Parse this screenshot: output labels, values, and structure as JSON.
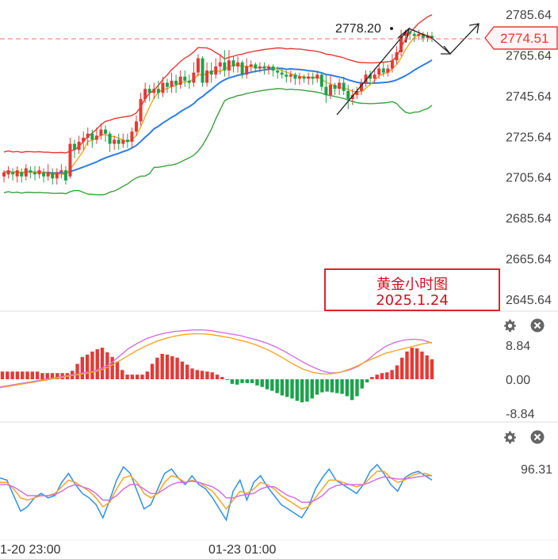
{
  "chart_data": [
    {
      "type": "candlestick",
      "title": "",
      "y_axis_ticks": [
        "2785.64",
        "2765.64",
        "2745.64",
        "2725.64",
        "2705.64",
        "2685.64",
        "2665.64",
        "2645.64"
      ],
      "ylim": [
        2640,
        2789
      ],
      "current_price": "2774.51",
      "high_label": "2778.20",
      "overlays": [
        "Bollinger upper (red)",
        "Bollinger middle (blue)",
        "Bollinger lower (green)",
        "moving average (orange)"
      ],
      "candles": [
        [
          2706,
          2708,
          2703,
          2709
        ],
        [
          2707,
          2709,
          2705,
          2711
        ],
        [
          2708,
          2707,
          2704,
          2710
        ],
        [
          2706,
          2709,
          2703,
          2711
        ],
        [
          2708,
          2706,
          2703,
          2710
        ],
        [
          2706,
          2710,
          2704,
          2712
        ],
        [
          2709,
          2708,
          2705,
          2711
        ],
        [
          2708,
          2707,
          2704,
          2711
        ],
        [
          2707,
          2709,
          2705,
          2711
        ],
        [
          2708,
          2706,
          2703,
          2710
        ],
        [
          2706,
          2708,
          2704,
          2712
        ],
        [
          2708,
          2705,
          2702,
          2710
        ],
        [
          2705,
          2708,
          2702,
          2710
        ],
        [
          2708,
          2709,
          2705,
          2712
        ],
        [
          2709,
          2704,
          2702,
          2711
        ],
        [
          2706,
          2722,
          2705,
          2725
        ],
        [
          2722,
          2719,
          2715,
          2724
        ],
        [
          2719,
          2723,
          2717,
          2726
        ],
        [
          2723,
          2725,
          2719,
          2728
        ],
        [
          2725,
          2727,
          2721,
          2730
        ],
        [
          2727,
          2724,
          2720,
          2729
        ],
        [
          2724,
          2726,
          2722,
          2730
        ],
        [
          2726,
          2729,
          2724,
          2732
        ],
        [
          2729,
          2727,
          2723,
          2731
        ],
        [
          2727,
          2722,
          2718,
          2728
        ],
        [
          2722,
          2724,
          2719,
          2726
        ],
        [
          2724,
          2722,
          2719,
          2727
        ],
        [
          2722,
          2724,
          2720,
          2727
        ],
        [
          2724,
          2723,
          2720,
          2727
        ],
        [
          2723,
          2728,
          2720,
          2730
        ],
        [
          2728,
          2733,
          2726,
          2736
        ],
        [
          2733,
          2744,
          2731,
          2747
        ],
        [
          2744,
          2749,
          2742,
          2752
        ],
        [
          2749,
          2747,
          2743,
          2751
        ],
        [
          2747,
          2749,
          2744,
          2752
        ],
        [
          2749,
          2747,
          2744,
          2753
        ],
        [
          2747,
          2752,
          2745,
          2755
        ],
        [
          2752,
          2750,
          2747,
          2754
        ],
        [
          2750,
          2753,
          2747,
          2757
        ],
        [
          2753,
          2751,
          2747,
          2756
        ],
        [
          2751,
          2755,
          2749,
          2758
        ],
        [
          2755,
          2753,
          2750,
          2758
        ],
        [
          2753,
          2752,
          2749,
          2756
        ],
        [
          2752,
          2757,
          2750,
          2762
        ],
        [
          2757,
          2764,
          2755,
          2766
        ],
        [
          2764,
          2752,
          2750,
          2765
        ],
        [
          2752,
          2758,
          2750,
          2762
        ],
        [
          2758,
          2756,
          2752,
          2762
        ],
        [
          2756,
          2760,
          2754,
          2764
        ],
        [
          2760,
          2762,
          2756,
          2766
        ],
        [
          2762,
          2758,
          2755,
          2768
        ],
        [
          2758,
          2763,
          2755,
          2768
        ],
        [
          2763,
          2760,
          2757,
          2765
        ],
        [
          2760,
          2762,
          2757,
          2765
        ],
        [
          2762,
          2756,
          2754,
          2763
        ],
        [
          2756,
          2760,
          2754,
          2764
        ],
        [
          2760,
          2761,
          2757,
          2763
        ],
        [
          2761,
          2759,
          2757,
          2762
        ],
        [
          2759,
          2760,
          2757,
          2762
        ],
        [
          2760,
          2759,
          2756,
          2762
        ],
        [
          2759,
          2760,
          2756,
          2761
        ],
        [
          2760,
          2758,
          2755,
          2761
        ],
        [
          2758,
          2757,
          2754,
          2760
        ],
        [
          2757,
          2756,
          2754,
          2759
        ],
        [
          2756,
          2755,
          2752,
          2758
        ],
        [
          2755,
          2756,
          2752,
          2758
        ],
        [
          2756,
          2754,
          2751,
          2757
        ],
        [
          2754,
          2755,
          2751,
          2757
        ],
        [
          2755,
          2754,
          2752,
          2756
        ],
        [
          2754,
          2755,
          2751,
          2757
        ],
        [
          2755,
          2754,
          2751,
          2757
        ],
        [
          2754,
          2756,
          2752,
          2758
        ],
        [
          2756,
          2750,
          2748,
          2757
        ],
        [
          2750,
          2746,
          2742,
          2756
        ],
        [
          2746,
          2751,
          2744,
          2756
        ],
        [
          2751,
          2749,
          2746,
          2752
        ],
        [
          2749,
          2752,
          2746,
          2754
        ],
        [
          2752,
          2748,
          2746,
          2755
        ],
        [
          2748,
          2744,
          2739,
          2751
        ],
        [
          2744,
          2746,
          2741,
          2749
        ],
        [
          2746,
          2748,
          2744,
          2750
        ],
        [
          2748,
          2752,
          2746,
          2754
        ],
        [
          2752,
          2756,
          2750,
          2758
        ],
        [
          2756,
          2754,
          2751,
          2758
        ],
        [
          2754,
          2756,
          2752,
          2759
        ],
        [
          2756,
          2759,
          2754,
          2761
        ],
        [
          2759,
          2757,
          2755,
          2762
        ],
        [
          2757,
          2759,
          2755,
          2761
        ],
        [
          2759,
          2763,
          2757,
          2766
        ],
        [
          2763,
          2767,
          2761,
          2770
        ],
        [
          2767,
          2775,
          2765,
          2778
        ],
        [
          2775,
          2777,
          2772,
          2778
        ],
        [
          2777,
          2776,
          2773,
          2778
        ],
        [
          2776,
          2775,
          2772,
          2778
        ],
        [
          2775,
          2776,
          2773,
          2778
        ],
        [
          2776,
          2774,
          2772,
          2777
        ],
        [
          2774,
          2775,
          2772,
          2777
        ],
        [
          2775,
          2774,
          2772,
          2777
        ]
      ]
    },
    {
      "type": "macd",
      "y_axis_ticks": [
        "8.84",
        "0.00",
        "-8.84"
      ],
      "ylim": [
        -12,
        12
      ],
      "series": [
        {
          "name": "",
          "color": "#d070e0"
        },
        {
          "name": "",
          "color": "#f5a623"
        }
      ],
      "histogram": [
        2.0,
        2.0,
        2.0,
        2.0,
        2.0,
        2.0,
        2.0,
        2.0,
        1.6,
        1.6,
        1.6,
        1.6,
        1.6,
        1.6,
        2.2,
        4.0,
        5.8,
        6.4,
        7.2,
        7.8,
        8.2,
        7.0,
        5.8,
        4.6,
        2.4,
        1.2,
        1.2,
        1.2,
        1.2,
        2.0,
        4.0,
        5.6,
        6.6,
        6.4,
        6.0,
        5.6,
        4.6,
        3.8,
        2.8,
        2.4,
        2.2,
        2.0,
        1.8,
        1.2,
        0.6,
        0,
        -1.2,
        -1.4,
        -1.0,
        -1.0,
        -1.0,
        -1.6,
        -2.0,
        -2.6,
        -3.0,
        -3.6,
        -4.2,
        -4.6,
        -5.0,
        -5.6,
        -6.0,
        -5.8,
        -5.0,
        -4.0,
        -3.4,
        -3.2,
        -3.4,
        -3.6,
        -3.8,
        -4.4,
        -5.4,
        -4.4,
        -2.4,
        -0.8,
        0.6,
        1.2,
        1.6,
        1.8,
        2.4,
        3.6,
        5.6,
        7.2,
        8.2,
        8.0,
        7.2,
        6.2,
        5.2
      ],
      "line_a": [
        -2,
        -1.6,
        -1.2,
        -0.8,
        -0.4,
        0,
        0.4,
        0.8,
        1.2,
        1.6,
        2.0,
        2.8,
        4.0,
        6.0,
        8.0,
        9.4,
        10.6,
        11.4,
        12.0,
        12.4,
        12.6,
        12.8,
        12.8,
        12.6,
        12.2,
        11.8,
        11.4,
        10.8,
        10.2,
        9.4,
        8.4,
        7.2,
        5.8,
        4.4,
        3.2,
        2.2,
        1.6,
        1.8,
        2.4,
        3.4,
        5.0,
        7.0,
        8.6,
        9.6,
        10.2,
        10.4,
        10.2,
        9.4
      ],
      "line_b": [
        -2.2,
        -1.8,
        -1.4,
        -1.0,
        -0.6,
        -0.2,
        0.2,
        0.6,
        1.0,
        1.4,
        1.8,
        2.4,
        3.4,
        4.8,
        6.2,
        7.6,
        8.8,
        9.8,
        10.6,
        11.2,
        11.6,
        11.8,
        11.8,
        11.6,
        11.2,
        10.8,
        10.2,
        9.6,
        8.8,
        7.8,
        6.6,
        5.2,
        3.8,
        2.6,
        1.8,
        1.4,
        1.4,
        1.8,
        2.6,
        3.6,
        4.8,
        5.8,
        6.8,
        7.4,
        8.0,
        8.6,
        9.2,
        9.6
      ],
      "current_value": "0.00"
    },
    {
      "type": "oscillator",
      "y_axis_ticks": [
        "96.31"
      ],
      "ylim": [
        40,
        110
      ],
      "series": [
        {
          "name": "",
          "color": "#2f8fe6"
        },
        {
          "name": "",
          "color": "#f5a623"
        },
        {
          "name": "",
          "color": "#d070e0"
        }
      ],
      "line_fast": [
        88,
        86,
        72,
        58,
        62,
        70,
        74,
        70,
        72,
        84,
        92,
        82,
        74,
        70,
        64,
        52,
        68,
        86,
        98,
        92,
        76,
        60,
        64,
        78,
        92,
        96,
        88,
        82,
        90,
        82,
        78,
        70,
        60,
        50,
        76,
        86,
        68,
        84,
        90,
        80,
        72,
        64,
        60,
        56,
        52,
        62,
        78,
        88,
        96,
        86,
        82,
        78,
        74,
        82,
        94,
        100,
        92,
        82,
        76,
        88,
        92,
        94,
        90,
        86
      ],
      "line_mid": [
        84,
        84,
        78,
        70,
        68,
        70,
        72,
        72,
        74,
        80,
        86,
        84,
        80,
        76,
        70,
        62,
        66,
        78,
        88,
        90,
        84,
        74,
        70,
        74,
        84,
        90,
        88,
        84,
        86,
        84,
        80,
        76,
        68,
        60,
        68,
        76,
        74,
        78,
        84,
        82,
        78,
        72,
        68,
        64,
        60,
        62,
        70,
        78,
        86,
        86,
        84,
        82,
        80,
        82,
        88,
        94,
        94,
        88,
        84,
        86,
        90,
        92,
        92,
        90
      ],
      "line_slow": [
        82,
        82,
        80,
        76,
        72,
        72,
        72,
        72,
        73,
        76,
        80,
        82,
        80,
        78,
        74,
        68,
        68,
        72,
        78,
        82,
        82,
        78,
        74,
        74,
        78,
        82,
        84,
        84,
        85,
        84,
        82,
        80,
        76,
        70,
        70,
        72,
        73,
        74,
        78,
        80,
        80,
        76,
        72,
        70,
        66,
        66,
        68,
        72,
        78,
        81,
        82,
        82,
        82,
        82,
        84,
        87,
        89,
        88,
        87,
        87,
        88,
        89,
        90,
        90
      ]
    }
  ],
  "annotation": {
    "line1": "黄金小时图",
    "line2": "2025.1.24"
  },
  "time_labels": [
    "1-20 23:00",
    "01-23 01:00"
  ],
  "controls": {
    "settings_icon": "gear-icon",
    "close_icon": "close-icon"
  },
  "colors": {
    "up": "#e53935",
    "down": "#1aa34a",
    "upper_band": "#e53935",
    "middle_band": "#2f7ce6",
    "lower_band": "#3aa040",
    "ma": "#f5a623",
    "annotation": "#d9262a"
  }
}
